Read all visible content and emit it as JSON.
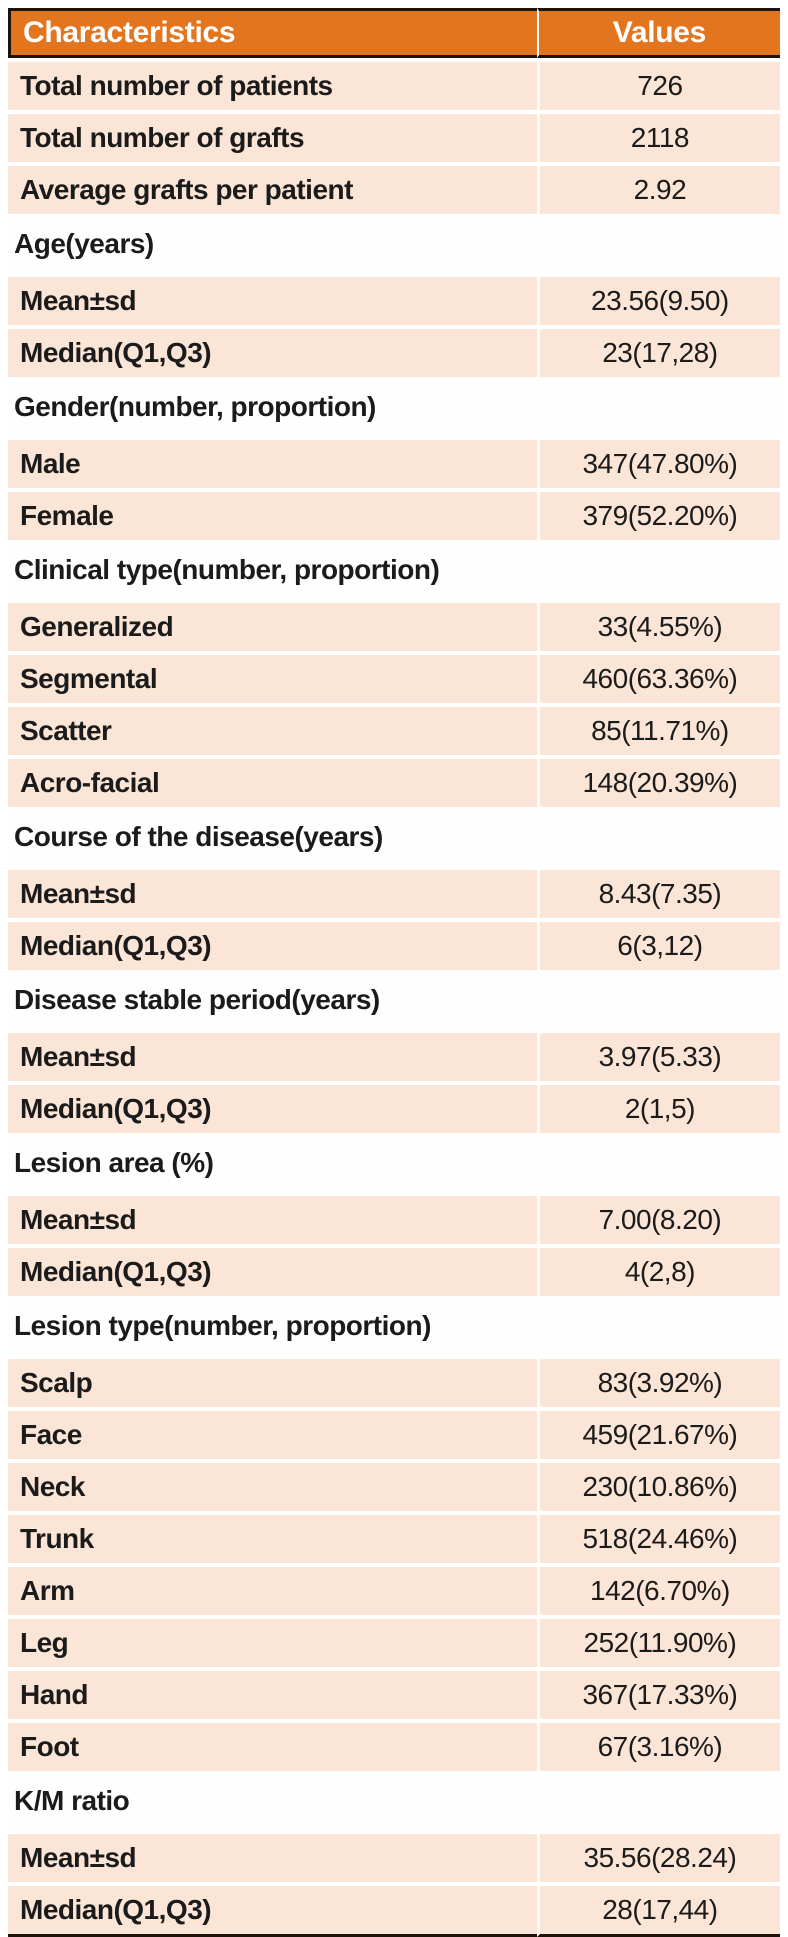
{
  "table": {
    "colors": {
      "header_bg": "#E3751F",
      "header_text": "#FFFFFF",
      "row_bg": "#FBE5D6",
      "section_bg": "#FEFEFE",
      "body_text": "#1B1B1B",
      "rule": "#1A140D"
    },
    "header": {
      "col1": "Characteristics",
      "col2": "Values"
    },
    "sections": [
      {
        "title": null,
        "rows": [
          [
            "Total number of patients",
            "726"
          ],
          [
            "Total number of grafts",
            "2118"
          ],
          [
            "Average grafts per patient",
            "2.92"
          ]
        ]
      },
      {
        "title": "Age(years)",
        "rows": [
          [
            "Mean±sd",
            "23.56(9.50)"
          ],
          [
            "Median(Q1,Q3)",
            "23(17,28)"
          ]
        ]
      },
      {
        "title": "Gender(number, proportion)",
        "rows": [
          [
            "Male",
            "347(47.80%)"
          ],
          [
            "Female",
            "379(52.20%)"
          ]
        ]
      },
      {
        "title": "Clinical type(number, proportion)",
        "rows": [
          [
            "Generalized",
            "33(4.55%)"
          ],
          [
            "Segmental",
            "460(63.36%)"
          ],
          [
            "Scatter",
            "85(11.71%)"
          ],
          [
            "Acro-facial",
            "148(20.39%)"
          ]
        ]
      },
      {
        "title": "Course of the disease(years)",
        "rows": [
          [
            "Mean±sd",
            "8.43(7.35)"
          ],
          [
            "Median(Q1,Q3)",
            "6(3,12)"
          ]
        ]
      },
      {
        "title": "Disease stable period(years)",
        "rows": [
          [
            "Mean±sd",
            "3.97(5.33)"
          ],
          [
            "Median(Q1,Q3)",
            "2(1,5)"
          ]
        ]
      },
      {
        "title": "Lesion area (%)",
        "rows": [
          [
            "Mean±sd",
            "7.00(8.20)"
          ],
          [
            "Median(Q1,Q3)",
            "4(2,8)"
          ]
        ]
      },
      {
        "title": "Lesion type(number, proportion)",
        "rows": [
          [
            "Scalp",
            "83(3.92%)"
          ],
          [
            "Face",
            "459(21.67%)"
          ],
          [
            "Neck",
            "230(10.86%)"
          ],
          [
            "Trunk",
            "518(24.46%)"
          ],
          [
            "Arm",
            "142(6.70%)"
          ],
          [
            "Leg",
            "252(11.90%)"
          ],
          [
            "Hand",
            "367(17.33%)"
          ],
          [
            "Foot",
            "67(3.16%)"
          ]
        ]
      },
      {
        "title": "K/M ratio",
        "rows": [
          [
            "Mean±sd",
            "35.56(28.24)"
          ],
          [
            "Median(Q1,Q3)",
            "28(17,44)"
          ]
        ]
      }
    ]
  }
}
